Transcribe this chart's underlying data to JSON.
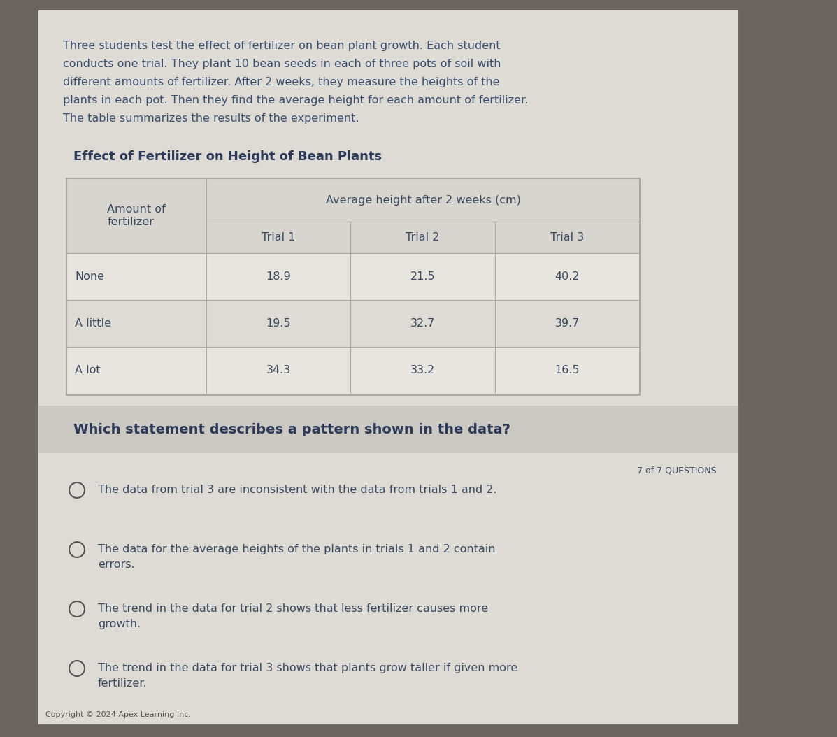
{
  "bg_outer": "#6b6560",
  "bg_card_top": "#dedad4",
  "bg_card_bottom": "#d0ccc6",
  "bg_answer_section": "#c8c4be",
  "intro_text_lines": [
    "Three students test the effect of fertilizer on bean plant growth. Each student",
    "conducts one trial. They plant 10 bean seeds in each of three pots of soil with",
    "different amounts of fertilizer. After 2 weeks, they measure the heights of the",
    "plants in each pot. Then they find the average height for each amount of fertilizer.",
    "The table summarizes the results of the experiment."
  ],
  "table_title": "Effect of Fertilizer on Height of Bean Plants",
  "col_header_main": "Average height after 2 weeks (cm)",
  "col_header_row_line1": "Amount of",
  "col_header_row_line2": "fertilizer",
  "col_sub_headers": [
    "Trial 1",
    "Trial 2",
    "Trial 3"
  ],
  "row_labels": [
    "None",
    "A little",
    "A lot"
  ],
  "table_data": [
    [
      "18.9",
      "21.5",
      "40.2"
    ],
    [
      "19.5",
      "32.7",
      "39.7"
    ],
    [
      "34.3",
      "33.2",
      "16.5"
    ]
  ],
  "question": "Which statement describes a pattern shown in the data?",
  "question_counter": "7 of 7 QUESTIONS",
  "answer_options": [
    [
      "The data from trial 3 are inconsistent with the data from trials 1 and 2."
    ],
    [
      "The data for the average heights of the plants in trials 1 and 2 contain",
      "errors."
    ],
    [
      "The trend in the data for trial 2 shows that less fertilizer causes more",
      "growth."
    ],
    [
      "The trend in the data for trial 3 shows that plants grow taller if given more",
      "fertilizer."
    ]
  ],
  "copyright": "Copyright © 2024 Apex Learning Inc.",
  "table_bg": "#e8e4de",
  "table_header_bg": "#d8d4ce",
  "table_cell_bg_light": "#e8e4de",
  "table_cell_bg_dark": "#dedad4",
  "table_border_color": "#aaa8a0",
  "text_blue": "#3a5070",
  "text_dark_blue": "#2a3a58",
  "text_body": "#3a4a60",
  "answer_bg": "#dedad4",
  "question_bg": "#ccc8c2"
}
